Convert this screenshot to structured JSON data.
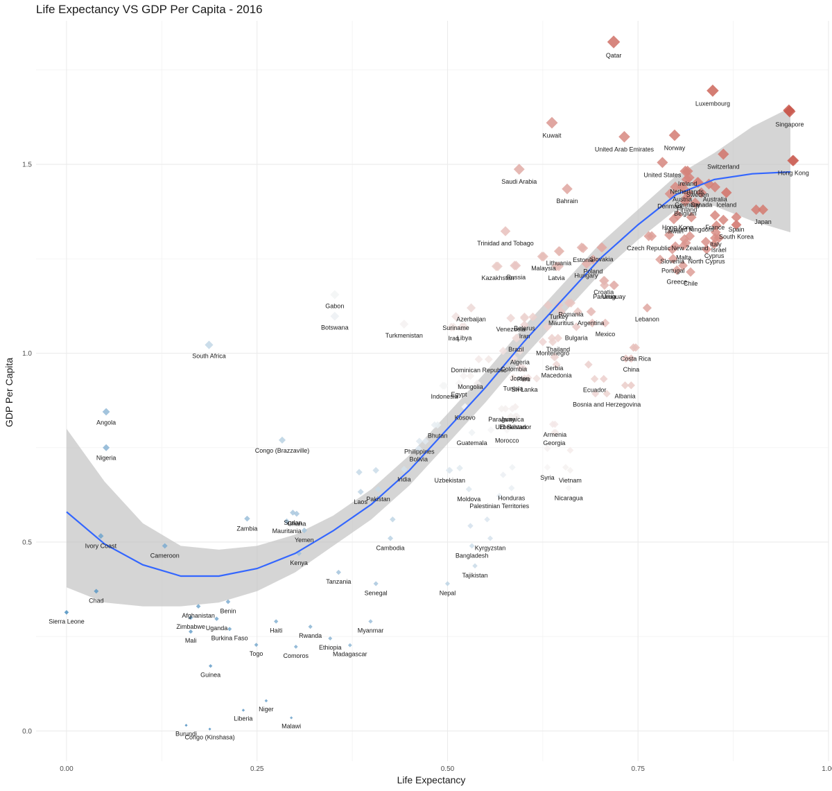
{
  "chart_data": {
    "type": "scatter",
    "title": "Life Expectancy VS GDP Per Capita - 2016",
    "xlabel": "Life Expectancy",
    "ylabel": "GDP Per Capita",
    "xlim": [
      -0.04,
      1.0
    ],
    "ylim": [
      -0.08,
      1.88
    ],
    "x_ticks": [
      0.0,
      0.25,
      0.5,
      0.75,
      1.0
    ],
    "x_tick_labels": [
      "0.00",
      "0.25",
      "0.50",
      "0.75",
      "1.00"
    ],
    "y_ticks": [
      0.0,
      0.5,
      1.0,
      1.5
    ],
    "y_tick_labels": [
      "0.0",
      "0.5",
      "1.0",
      "1.5"
    ],
    "grid": true,
    "legend": "none",
    "color_scale": {
      "low": "#2c7bb6",
      "mid": "#f7f7f7",
      "high": "#c0392b"
    },
    "smooth": {
      "method": "loess",
      "color": "#3366ff",
      "band_color": "#bfbfbf",
      "x": [
        0.0,
        0.05,
        0.1,
        0.15,
        0.2,
        0.25,
        0.3,
        0.35,
        0.4,
        0.45,
        0.5,
        0.55,
        0.6,
        0.65,
        0.7,
        0.75,
        0.8,
        0.85,
        0.9,
        0.95
      ],
      "y": [
        0.58,
        0.495,
        0.44,
        0.41,
        0.41,
        0.43,
        0.47,
        0.53,
        0.6,
        0.69,
        0.8,
        0.91,
        1.03,
        1.14,
        1.25,
        1.34,
        1.42,
        1.46,
        1.475,
        1.48
      ],
      "lower": [
        0.38,
        0.34,
        0.33,
        0.33,
        0.34,
        0.37,
        0.42,
        0.49,
        0.56,
        0.65,
        0.76,
        0.87,
        0.99,
        1.1,
        1.21,
        1.3,
        1.38,
        1.39,
        1.35,
        1.32
      ],
      "upper": [
        0.8,
        0.66,
        0.55,
        0.49,
        0.48,
        0.49,
        0.52,
        0.57,
        0.64,
        0.73,
        0.84,
        0.95,
        1.07,
        1.18,
        1.29,
        1.38,
        1.47,
        1.53,
        1.6,
        1.65
      ]
    },
    "labeled_points": [
      {
        "name": "Qatar",
        "x": 0.718,
        "y": 1.824
      },
      {
        "name": "Luxembourg",
        "x": 0.848,
        "y": 1.695
      },
      {
        "name": "Singapore",
        "x": 0.949,
        "y": 1.64
      },
      {
        "name": "Kuwait",
        "x": 0.637,
        "y": 1.61
      },
      {
        "name": "United Arab Emirates",
        "x": 0.732,
        "y": 1.573
      },
      {
        "name": "Norway",
        "x": 0.798,
        "y": 1.577
      },
      {
        "name": "Saudi Arabia",
        "x": 0.594,
        "y": 1.487
      },
      {
        "name": "Bahrain",
        "x": 0.657,
        "y": 1.435
      },
      {
        "name": "United States",
        "x": 0.782,
        "y": 1.505
      },
      {
        "name": "Switzerland",
        "x": 0.862,
        "y": 1.527
      },
      {
        "name": "Hong Kong",
        "x": 0.954,
        "y": 1.51
      },
      {
        "name": "Ireland",
        "x": 0.815,
        "y": 1.482
      },
      {
        "name": "Netherlands",
        "x": 0.814,
        "y": 1.46
      },
      {
        "name": "Sweden",
        "x": 0.828,
        "y": 1.452
      },
      {
        "name": "Austria",
        "x": 0.808,
        "y": 1.44
      },
      {
        "name": "Australia",
        "x": 0.851,
        "y": 1.44
      },
      {
        "name": "Denmark",
        "x": 0.792,
        "y": 1.422
      },
      {
        "name": "Canada",
        "x": 0.833,
        "y": 1.425
      },
      {
        "name": "Germany",
        "x": 0.815,
        "y": 1.425
      },
      {
        "name": "Finland",
        "x": 0.814,
        "y": 1.412
      },
      {
        "name": "Belgium",
        "x": 0.812,
        "y": 1.402
      },
      {
        "name": "Iceland",
        "x": 0.866,
        "y": 1.425
      },
      {
        "name": "Hong Kong",
        "x": 0.802,
        "y": 1.365
      },
      {
        "name": "United Kingdom",
        "x": 0.82,
        "y": 1.36
      },
      {
        "name": "Taiwan",
        "x": 0.797,
        "y": 1.355
      },
      {
        "name": "France",
        "x": 0.851,
        "y": 1.365
      },
      {
        "name": "Japan",
        "x": 0.914,
        "y": 1.38
      },
      {
        "name": "New Zealand",
        "x": 0.818,
        "y": 1.31
      },
      {
        "name": "South Korea",
        "x": 0.879,
        "y": 1.34
      },
      {
        "name": "Italy",
        "x": 0.852,
        "y": 1.32
      },
      {
        "name": "Israel",
        "x": 0.856,
        "y": 1.305
      },
      {
        "name": "Spain",
        "x": 0.879,
        "y": 1.36
      },
      {
        "name": "Cyprus",
        "x": 0.85,
        "y": 1.289
      },
      {
        "name": "North Cyprus",
        "x": 0.84,
        "y": 1.275
      },
      {
        "name": "Czech Republic",
        "x": 0.764,
        "y": 1.31
      },
      {
        "name": "Slovenia",
        "x": 0.795,
        "y": 1.275
      },
      {
        "name": "Malta",
        "x": 0.81,
        "y": 1.285
      },
      {
        "name": "Portugal",
        "x": 0.796,
        "y": 1.25
      },
      {
        "name": "Greece",
        "x": 0.801,
        "y": 1.22
      },
      {
        "name": "Chile",
        "x": 0.819,
        "y": 1.215
      },
      {
        "name": "Trinidad and Tobago",
        "x": 0.576,
        "y": 1.323
      },
      {
        "name": "Estonia",
        "x": 0.678,
        "y": 1.278
      },
      {
        "name": "Slovakia",
        "x": 0.702,
        "y": 1.28
      },
      {
        "name": "Lithuania",
        "x": 0.646,
        "y": 1.27
      },
      {
        "name": "Malaysia",
        "x": 0.626,
        "y": 1.256
      },
      {
        "name": "Kazakhstan",
        "x": 0.566,
        "y": 1.23
      },
      {
        "name": "Russia",
        "x": 0.59,
        "y": 1.232
      },
      {
        "name": "Hungary",
        "x": 0.682,
        "y": 1.237
      },
      {
        "name": "Poland",
        "x": 0.691,
        "y": 1.248
      },
      {
        "name": "Latvia",
        "x": 0.643,
        "y": 1.23
      },
      {
        "name": "Croatia",
        "x": 0.705,
        "y": 1.192
      },
      {
        "name": "Uruguay",
        "x": 0.718,
        "y": 1.18
      },
      {
        "name": "Panama",
        "x": 0.706,
        "y": 1.18
      },
      {
        "name": "Turkey",
        "x": 0.646,
        "y": 1.127
      },
      {
        "name": "Romania",
        "x": 0.662,
        "y": 1.133
      },
      {
        "name": "Mauritius",
        "x": 0.649,
        "y": 1.11
      },
      {
        "name": "Argentina",
        "x": 0.688,
        "y": 1.11
      },
      {
        "name": "Lebanon",
        "x": 0.762,
        "y": 1.12
      },
      {
        "name": "Venezuela",
        "x": 0.583,
        "y": 1.093
      },
      {
        "name": "Belarus",
        "x": 0.601,
        "y": 1.096
      },
      {
        "name": "Iran",
        "x": 0.601,
        "y": 1.075
      },
      {
        "name": "Bulgaria",
        "x": 0.669,
        "y": 1.07
      },
      {
        "name": "Mexico",
        "x": 0.707,
        "y": 1.08
      },
      {
        "name": "Gabon",
        "x": 0.352,
        "y": 1.155
      },
      {
        "name": "Azerbaijan",
        "x": 0.531,
        "y": 1.12
      },
      {
        "name": "Suriname",
        "x": 0.511,
        "y": 1.097
      },
      {
        "name": "Turkmenistan",
        "x": 0.443,
        "y": 1.077
      },
      {
        "name": "Botswana",
        "x": 0.352,
        "y": 1.098
      },
      {
        "name": "Iraq",
        "x": 0.508,
        "y": 1.069
      },
      {
        "name": "Libya",
        "x": 0.522,
        "y": 1.07
      },
      {
        "name": "Brazil",
        "x": 0.59,
        "y": 1.04
      },
      {
        "name": "Thailand",
        "x": 0.645,
        "y": 1.04
      },
      {
        "name": "Montenegro",
        "x": 0.638,
        "y": 1.03
      },
      {
        "name": "Costa Rica",
        "x": 0.747,
        "y": 1.015
      },
      {
        "name": "Algeria",
        "x": 0.595,
        "y": 1.006
      },
      {
        "name": "South Africa",
        "x": 0.187,
        "y": 1.022
      },
      {
        "name": "Serbia",
        "x": 0.64,
        "y": 0.99
      },
      {
        "name": "China",
        "x": 0.741,
        "y": 0.986
      },
      {
        "name": "Dominican Republic",
        "x": 0.541,
        "y": 0.984
      },
      {
        "name": "Colombia",
        "x": 0.587,
        "y": 0.987
      },
      {
        "name": "Macedonia",
        "x": 0.643,
        "y": 0.97
      },
      {
        "name": "Jordan",
        "x": 0.595,
        "y": 0.962
      },
      {
        "name": "Peru",
        "x": 0.6,
        "y": 0.96
      },
      {
        "name": "Mongolia",
        "x": 0.53,
        "y": 0.94
      },
      {
        "name": "Tunisia",
        "x": 0.586,
        "y": 0.935
      },
      {
        "name": "Sri Lanka",
        "x": 0.601,
        "y": 0.933
      },
      {
        "name": "Ecuador",
        "x": 0.693,
        "y": 0.932
      },
      {
        "name": "Albania",
        "x": 0.733,
        "y": 0.915
      },
      {
        "name": "Indonesia",
        "x": 0.496,
        "y": 0.914
      },
      {
        "name": "Egypt",
        "x": 0.515,
        "y": 0.92
      },
      {
        "name": "Bosnia and Herzegovina",
        "x": 0.709,
        "y": 0.893
      },
      {
        "name": "Kosovo",
        "x": 0.523,
        "y": 0.858
      },
      {
        "name": "Paraguay",
        "x": 0.571,
        "y": 0.853
      },
      {
        "name": "Jamaica",
        "x": 0.585,
        "y": 0.853
      },
      {
        "name": "Uzbekistan",
        "x": 0.583,
        "y": 0.833
      },
      {
        "name": "El Salvador",
        "x": 0.589,
        "y": 0.833
      },
      {
        "name": "Armenia",
        "x": 0.641,
        "y": 0.812
      },
      {
        "name": "Bhutan",
        "x": 0.487,
        "y": 0.81
      },
      {
        "name": "Georgia",
        "x": 0.64,
        "y": 0.79
      },
      {
        "name": "Morocco",
        "x": 0.578,
        "y": 0.797
      },
      {
        "name": "Guatemala",
        "x": 0.532,
        "y": 0.79
      },
      {
        "name": "Angola",
        "x": 0.052,
        "y": 0.845
      },
      {
        "name": "Philippines",
        "x": 0.463,
        "y": 0.767
      },
      {
        "name": "Bolivia",
        "x": 0.462,
        "y": 0.747
      },
      {
        "name": "Congo (Brazzaville)",
        "x": 0.283,
        "y": 0.77
      },
      {
        "name": "Nigeria",
        "x": 0.052,
        "y": 0.75
      },
      {
        "name": "Syria",
        "x": 0.631,
        "y": 0.698
      },
      {
        "name": "Vietnam",
        "x": 0.661,
        "y": 0.69
      },
      {
        "name": "India",
        "x": 0.443,
        "y": 0.693
      },
      {
        "name": "Uzbekistan",
        "x": 0.503,
        "y": 0.69
      },
      {
        "name": "Honduras",
        "x": 0.584,
        "y": 0.643
      },
      {
        "name": "Nicaragua",
        "x": 0.659,
        "y": 0.643
      },
      {
        "name": "Moldova",
        "x": 0.528,
        "y": 0.64
      },
      {
        "name": "Pakistan",
        "x": 0.409,
        "y": 0.64
      },
      {
        "name": "Laos",
        "x": 0.386,
        "y": 0.633
      },
      {
        "name": "Palestinian Territories",
        "x": 0.568,
        "y": 0.622
      },
      {
        "name": "Zambia",
        "x": 0.237,
        "y": 0.562
      },
      {
        "name": "Mauritania",
        "x": 0.289,
        "y": 0.555
      },
      {
        "name": "Ghana",
        "x": 0.302,
        "y": 0.575
      },
      {
        "name": "Sudan",
        "x": 0.297,
        "y": 0.578
      },
      {
        "name": "Yemen",
        "x": 0.312,
        "y": 0.531
      },
      {
        "name": "Kyrgyzstan",
        "x": 0.556,
        "y": 0.51
      },
      {
        "name": "Ivory Coast",
        "x": 0.045,
        "y": 0.516
      },
      {
        "name": "Cambodia",
        "x": 0.425,
        "y": 0.51
      },
      {
        "name": "Bangladesh",
        "x": 0.532,
        "y": 0.49
      },
      {
        "name": "Cameroon",
        "x": 0.129,
        "y": 0.49
      },
      {
        "name": "Kenya",
        "x": 0.305,
        "y": 0.47
      },
      {
        "name": "Tajikistan",
        "x": 0.536,
        "y": 0.437
      },
      {
        "name": "Tanzania",
        "x": 0.357,
        "y": 0.42
      },
      {
        "name": "Nepal",
        "x": 0.5,
        "y": 0.39
      },
      {
        "name": "Senegal",
        "x": 0.406,
        "y": 0.39
      },
      {
        "name": "Chad",
        "x": 0.039,
        "y": 0.37
      },
      {
        "name": "Benin",
        "x": 0.212,
        "y": 0.342
      },
      {
        "name": "Afghanistan",
        "x": 0.173,
        "y": 0.33
      },
      {
        "name": "Sierra Leone",
        "x": 0.0,
        "y": 0.314
      },
      {
        "name": "Zimbabwe",
        "x": 0.163,
        "y": 0.3
      },
      {
        "name": "Uganda",
        "x": 0.197,
        "y": 0.297
      },
      {
        "name": "Haiti",
        "x": 0.275,
        "y": 0.29
      },
      {
        "name": "Myanmar",
        "x": 0.399,
        "y": 0.29
      },
      {
        "name": "Burkina Faso",
        "x": 0.214,
        "y": 0.27
      },
      {
        "name": "Rwanda",
        "x": 0.32,
        "y": 0.276
      },
      {
        "name": "Mali",
        "x": 0.163,
        "y": 0.263
      },
      {
        "name": "Ethiopia",
        "x": 0.346,
        "y": 0.245
      },
      {
        "name": "Togo",
        "x": 0.249,
        "y": 0.228
      },
      {
        "name": "Comoros",
        "x": 0.301,
        "y": 0.223
      },
      {
        "name": "Madagascar",
        "x": 0.372,
        "y": 0.227
      },
      {
        "name": "Guinea",
        "x": 0.189,
        "y": 0.172
      },
      {
        "name": "Niger",
        "x": 0.262,
        "y": 0.08
      },
      {
        "name": "Liberia",
        "x": 0.232,
        "y": 0.055
      },
      {
        "name": "Malawi",
        "x": 0.295,
        "y": 0.035
      },
      {
        "name": "Burundi",
        "x": 0.157,
        "y": 0.015
      },
      {
        "name": "Congo (Kinshasa)",
        "x": 0.188,
        "y": 0.005
      }
    ],
    "unlabeled_points": [
      [
        0.948,
        1.643
      ],
      [
        0.953,
        1.51
      ],
      [
        0.843,
        1.448
      ],
      [
        0.829,
        1.452
      ],
      [
        0.866,
        1.425
      ],
      [
        0.799,
        1.44
      ],
      [
        0.825,
        1.398
      ],
      [
        0.817,
        1.465
      ],
      [
        0.812,
        1.482
      ],
      [
        0.853,
        1.338
      ],
      [
        0.862,
        1.353
      ],
      [
        0.879,
        1.34
      ],
      [
        0.905,
        1.38
      ],
      [
        0.791,
        1.313
      ],
      [
        0.799,
        1.283
      ],
      [
        0.811,
        1.302
      ],
      [
        0.839,
        1.295
      ],
      [
        0.768,
        1.31
      ],
      [
        0.809,
        1.232
      ],
      [
        0.851,
        1.305
      ],
      [
        0.779,
        1.248
      ],
      [
        0.813,
        1.292
      ],
      [
        0.676,
        1.28
      ],
      [
        0.703,
        1.28
      ],
      [
        0.647,
        1.27
      ],
      [
        0.624,
        1.256
      ],
      [
        0.588,
        1.232
      ],
      [
        0.564,
        1.23
      ],
      [
        0.683,
        1.237
      ],
      [
        0.691,
        1.248
      ],
      [
        0.646,
        1.23
      ],
      [
        0.706,
        1.192
      ],
      [
        0.719,
        1.18
      ],
      [
        0.659,
        1.133
      ],
      [
        0.632,
        1.127
      ],
      [
        0.671,
        1.11
      ],
      [
        0.689,
        1.11
      ],
      [
        0.762,
        1.12
      ],
      [
        0.601,
        1.093
      ],
      [
        0.612,
        1.096
      ],
      [
        0.631,
        1.07
      ],
      [
        0.69,
        1.08
      ],
      [
        0.531,
        1.12
      ],
      [
        0.511,
        1.097
      ],
      [
        0.443,
        1.077
      ],
      [
        0.505,
        1.069
      ],
      [
        0.519,
        1.07
      ],
      [
        0.591,
        1.04
      ],
      [
        0.637,
        1.04
      ],
      [
        0.625,
        1.03
      ],
      [
        0.744,
        1.015
      ],
      [
        0.573,
        1.006
      ],
      [
        0.641,
        0.99
      ],
      [
        0.734,
        0.986
      ],
      [
        0.554,
        0.984
      ],
      [
        0.586,
        0.987
      ],
      [
        0.685,
        0.97
      ],
      [
        0.597,
        0.962
      ],
      [
        0.521,
        0.94
      ],
      [
        0.606,
        0.935
      ],
      [
        0.617,
        0.933
      ],
      [
        0.705,
        0.932
      ],
      [
        0.741,
        0.915
      ],
      [
        0.494,
        0.914
      ],
      [
        0.539,
        0.92
      ],
      [
        0.694,
        0.893
      ],
      [
        0.589,
        0.858
      ],
      [
        0.576,
        0.853
      ],
      [
        0.591,
        0.833
      ],
      [
        0.638,
        0.812
      ],
      [
        0.642,
        0.79
      ],
      [
        0.557,
        0.797
      ],
      [
        0.483,
        0.81
      ],
      [
        0.471,
        0.767
      ],
      [
        0.462,
        0.747
      ],
      [
        0.631,
        0.748
      ],
      [
        0.661,
        0.743
      ],
      [
        0.502,
        0.69
      ],
      [
        0.573,
        0.678
      ],
      [
        0.585,
        0.698
      ],
      [
        0.655,
        0.698
      ],
      [
        0.516,
        0.696
      ],
      [
        0.552,
        0.56
      ],
      [
        0.53,
        0.543
      ],
      [
        0.406,
        0.69
      ],
      [
        0.384,
        0.685
      ],
      [
        0.428,
        0.56
      ]
    ]
  }
}
